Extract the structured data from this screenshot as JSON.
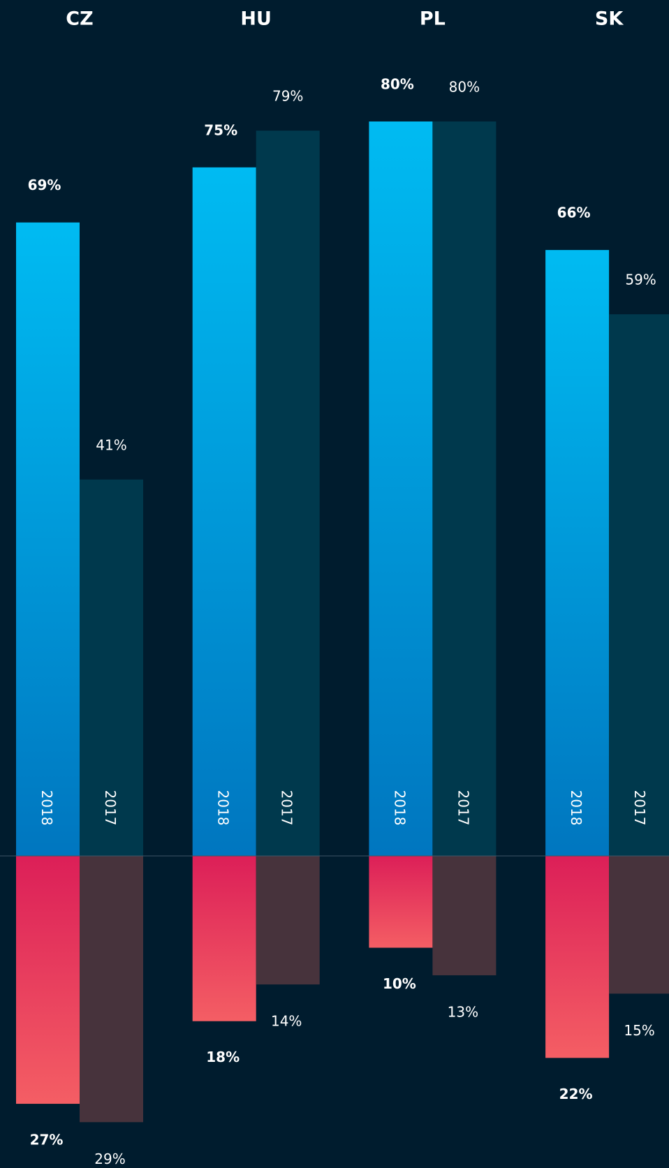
{
  "chart_data": {
    "type": "bar",
    "categories": [
      "CZ",
      "HU",
      "PL",
      "SK"
    ],
    "series": [
      {
        "name": "2018",
        "color": [
          "#00bbf2",
          "#0076bf"
        ],
        "values": [
          69,
          75,
          80,
          66
        ],
        "value_labels": [
          "69%",
          "75%",
          "80%",
          "66%"
        ]
      },
      {
        "name": "2017",
        "color": "#00394d",
        "values": [
          41,
          79,
          80,
          59
        ],
        "value_labels": [
          "41%",
          "79%",
          "80%",
          "59%"
        ]
      }
    ],
    "negative_series": [
      {
        "color": [
          "#dc1f58",
          "#f45e64"
        ],
        "values": [
          27,
          18,
          10,
          22
        ],
        "value_labels": [
          "27%",
          "18%",
          "10%",
          "22%"
        ]
      },
      {
        "color": "#47333c",
        "values": [
          29,
          14,
          13,
          15
        ],
        "value_labels": [
          "29%",
          "14%",
          "13%",
          "15%"
        ]
      }
    ]
  }
}
